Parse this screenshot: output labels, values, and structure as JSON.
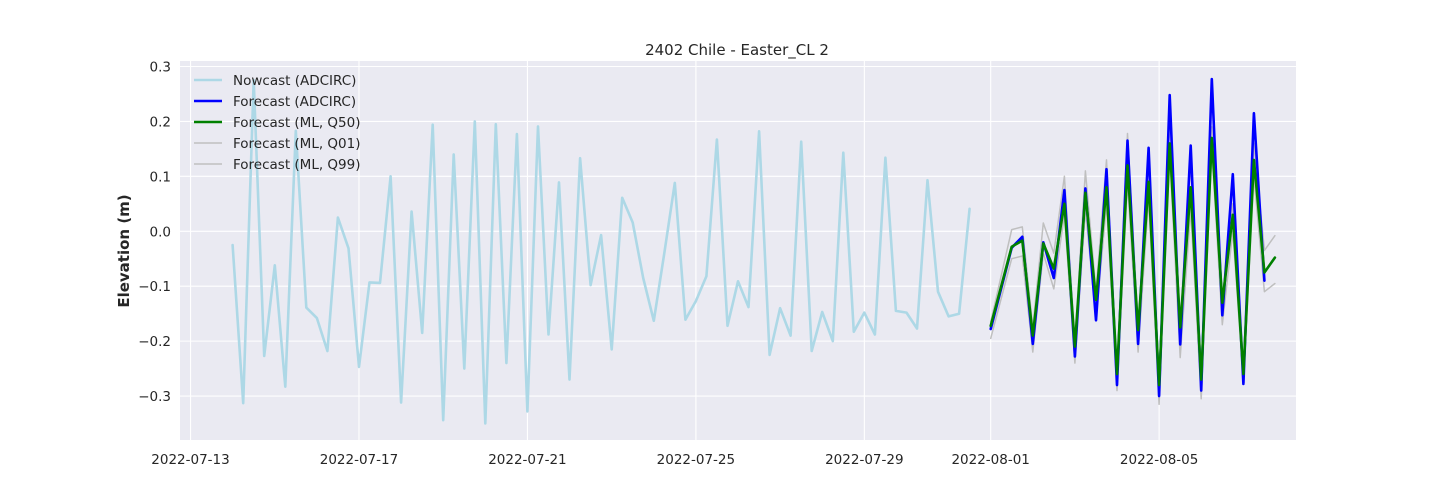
{
  "chart_data": {
    "type": "line",
    "title": "2402 Chile - Easter_CL 2",
    "xlabel": "",
    "ylabel": "Elevation (m)",
    "x_axis_type": "date",
    "xlim": [
      "2022-07-12T18:00",
      "2022-08-08T06:00"
    ],
    "ylim": [
      -0.38,
      0.31
    ],
    "x_ticks": [
      "2022-07-13",
      "2022-07-17",
      "2022-07-21",
      "2022-07-25",
      "2022-07-29",
      "2022-08-01",
      "2022-08-05"
    ],
    "y_ticks": [
      -0.3,
      -0.2,
      -0.1,
      0.0,
      0.1,
      0.2,
      0.3
    ],
    "y_tick_labels": [
      "−0.3",
      "−0.2",
      "−0.1",
      "0.0",
      "0.1",
      "0.2",
      "0.3"
    ],
    "grid": true,
    "legend_position": "top-left",
    "series": [
      {
        "name": "Nowcast (ADCIRC)",
        "color": "#add8e6",
        "width": 2.6,
        "x": [
          "2022-07-14T00:00",
          "2022-07-14T06:00",
          "2022-07-14T12:00",
          "2022-07-14T18:00",
          "2022-07-15T00:00",
          "2022-07-15T06:00",
          "2022-07-15T12:00",
          "2022-07-15T18:00",
          "2022-07-16T00:00",
          "2022-07-16T06:00",
          "2022-07-16T12:00",
          "2022-07-16T18:00",
          "2022-07-17T00:00",
          "2022-07-17T06:00",
          "2022-07-17T12:00",
          "2022-07-17T18:00",
          "2022-07-18T00:00",
          "2022-07-18T06:00",
          "2022-07-18T12:00",
          "2022-07-18T18:00",
          "2022-07-19T00:00",
          "2022-07-19T06:00",
          "2022-07-19T12:00",
          "2022-07-19T18:00",
          "2022-07-20T00:00",
          "2022-07-20T06:00",
          "2022-07-20T12:00",
          "2022-07-20T18:00",
          "2022-07-21T00:00",
          "2022-07-21T06:00",
          "2022-07-21T12:00",
          "2022-07-21T18:00",
          "2022-07-22T00:00",
          "2022-07-22T06:00",
          "2022-07-22T12:00",
          "2022-07-22T18:00",
          "2022-07-23T00:00",
          "2022-07-23T06:00",
          "2022-07-23T12:00",
          "2022-07-23T18:00",
          "2022-07-24T00:00",
          "2022-07-24T06:00",
          "2022-07-24T12:00",
          "2022-07-24T18:00",
          "2022-07-25T00:00",
          "2022-07-25T06:00",
          "2022-07-25T12:00",
          "2022-07-25T18:00",
          "2022-07-26T00:00",
          "2022-07-26T06:00",
          "2022-07-26T12:00",
          "2022-07-26T18:00",
          "2022-07-27T00:00",
          "2022-07-27T06:00",
          "2022-07-27T12:00",
          "2022-07-27T18:00",
          "2022-07-28T00:00",
          "2022-07-28T06:00",
          "2022-07-28T12:00",
          "2022-07-28T18:00",
          "2022-07-29T00:00",
          "2022-07-29T06:00",
          "2022-07-29T12:00",
          "2022-07-29T18:00",
          "2022-07-30T00:00",
          "2022-07-30T06:00",
          "2022-07-30T12:00",
          "2022-07-30T18:00",
          "2022-07-31T00:00",
          "2022-07-31T06:00",
          "2022-07-31T12:00"
        ],
        "y": [
          -0.025,
          -0.313,
          0.275,
          -0.227,
          -0.062,
          -0.283,
          0.183,
          -0.139,
          -0.158,
          -0.218,
          0.025,
          -0.031,
          -0.247,
          -0.093,
          -0.094,
          0.1,
          -0.312,
          0.036,
          -0.185,
          0.194,
          -0.344,
          0.14,
          -0.25,
          0.2,
          -0.35,
          0.195,
          -0.24,
          0.177,
          -0.328,
          0.191,
          -0.188,
          0.089,
          -0.27,
          0.133,
          -0.098,
          -0.007,
          -0.215,
          0.061,
          0.016,
          -0.085,
          -0.163,
          -0.04,
          0.088,
          -0.161,
          -0.127,
          -0.082,
          0.167,
          -0.172,
          -0.091,
          -0.138,
          0.182,
          -0.225,
          -0.14,
          -0.19,
          0.163,
          -0.218,
          -0.147,
          -0.2,
          0.143,
          -0.183,
          -0.148,
          -0.188,
          0.134,
          -0.145,
          -0.148,
          -0.177,
          0.093,
          -0.11,
          -0.155,
          -0.15,
          0.041
        ]
      },
      {
        "name": "Forecast (ADCIRC)",
        "color": "#0000ff",
        "width": 2.6,
        "x": [
          "2022-08-01T00:00",
          "2022-08-01T12:00",
          "2022-08-01T18:00",
          "2022-08-02T00:00",
          "2022-08-02T06:00",
          "2022-08-02T12:00",
          "2022-08-02T18:00",
          "2022-08-03T00:00",
          "2022-08-03T06:00",
          "2022-08-03T12:00",
          "2022-08-03T18:00",
          "2022-08-04T00:00",
          "2022-08-04T06:00",
          "2022-08-04T12:00",
          "2022-08-04T18:00",
          "2022-08-05T00:00",
          "2022-08-05T06:00",
          "2022-08-05T12:00",
          "2022-08-05T18:00",
          "2022-08-06T00:00",
          "2022-08-06T06:00",
          "2022-08-06T12:00",
          "2022-08-06T18:00",
          "2022-08-07T00:00",
          "2022-08-07T06:00",
          "2022-08-07T12:00"
        ],
        "y": [
          -0.178,
          -0.03,
          -0.01,
          -0.205,
          -0.02,
          -0.085,
          0.075,
          -0.228,
          0.078,
          -0.162,
          0.113,
          -0.28,
          0.165,
          -0.205,
          0.152,
          -0.3,
          0.248,
          -0.206,
          0.156,
          -0.29,
          0.277,
          -0.153,
          0.104,
          -0.278,
          0.215,
          -0.09
        ]
      },
      {
        "name": "Forecast (ML, Q50)",
        "color": "#008000",
        "width": 2.6,
        "x": [
          "2022-08-01T00:00",
          "2022-08-01T12:00",
          "2022-08-01T18:00",
          "2022-08-02T00:00",
          "2022-08-02T06:00",
          "2022-08-02T12:00",
          "2022-08-02T18:00",
          "2022-08-03T00:00",
          "2022-08-03T06:00",
          "2022-08-03T12:00",
          "2022-08-03T18:00",
          "2022-08-04T00:00",
          "2022-08-04T06:00",
          "2022-08-04T12:00",
          "2022-08-04T18:00",
          "2022-08-05T00:00",
          "2022-08-05T06:00",
          "2022-08-05T12:00",
          "2022-08-05T18:00",
          "2022-08-06T00:00",
          "2022-08-06T06:00",
          "2022-08-06T12:00",
          "2022-08-06T18:00",
          "2022-08-07T00:00",
          "2022-08-07T06:00",
          "2022-08-07T12:00",
          "2022-08-07T18:00"
        ],
        "y": [
          -0.172,
          -0.028,
          -0.017,
          -0.19,
          -0.022,
          -0.068,
          0.05,
          -0.21,
          0.07,
          -0.125,
          0.08,
          -0.26,
          0.12,
          -0.18,
          0.09,
          -0.28,
          0.16,
          -0.175,
          0.08,
          -0.27,
          0.17,
          -0.13,
          0.03,
          -0.26,
          0.13,
          -0.075,
          -0.048
        ]
      },
      {
        "name": "Forecast (ML, Q01)",
        "color": "#bfbfbf",
        "width": 1.5,
        "x": [
          "2022-08-01T00:00",
          "2022-08-01T12:00",
          "2022-08-01T18:00",
          "2022-08-02T00:00",
          "2022-08-02T06:00",
          "2022-08-02T12:00",
          "2022-08-02T18:00",
          "2022-08-03T00:00",
          "2022-08-03T06:00",
          "2022-08-03T12:00",
          "2022-08-03T18:00",
          "2022-08-04T00:00",
          "2022-08-04T06:00",
          "2022-08-04T12:00",
          "2022-08-04T18:00",
          "2022-08-05T00:00",
          "2022-08-05T06:00",
          "2022-08-05T12:00",
          "2022-08-05T18:00",
          "2022-08-06T00:00",
          "2022-08-06T06:00",
          "2022-08-06T12:00",
          "2022-08-06T18:00",
          "2022-08-07T00:00",
          "2022-08-07T06:00",
          "2022-08-07T12:00",
          "2022-08-07T18:00"
        ],
        "y": [
          -0.195,
          -0.05,
          -0.045,
          -0.22,
          -0.04,
          -0.105,
          0.03,
          -0.24,
          0.04,
          -0.16,
          0.05,
          -0.29,
          0.09,
          -0.22,
          0.06,
          -0.315,
          0.14,
          -0.23,
          0.04,
          -0.305,
          0.15,
          -0.17,
          0.0,
          -0.275,
          0.1,
          -0.11,
          -0.095
        ]
      },
      {
        "name": "Forecast (ML, Q99)",
        "color": "#bfbfbf",
        "width": 1.5,
        "x": [
          "2022-08-01T00:00",
          "2022-08-01T12:00",
          "2022-08-01T18:00",
          "2022-08-02T00:00",
          "2022-08-02T06:00",
          "2022-08-02T12:00",
          "2022-08-02T18:00",
          "2022-08-03T00:00",
          "2022-08-03T06:00",
          "2022-08-03T12:00",
          "2022-08-03T18:00",
          "2022-08-04T00:00",
          "2022-08-04T06:00",
          "2022-08-04T12:00",
          "2022-08-04T18:00",
          "2022-08-05T00:00",
          "2022-08-05T06:00",
          "2022-08-05T12:00",
          "2022-08-05T18:00",
          "2022-08-06T00:00",
          "2022-08-06T06:00",
          "2022-08-06T12:00",
          "2022-08-06T18:00",
          "2022-08-07T00:00",
          "2022-08-07T06:00",
          "2022-08-07T12:00",
          "2022-08-07T18:00"
        ],
        "y": [
          -0.165,
          0.003,
          0.008,
          -0.175,
          0.015,
          -0.04,
          0.1,
          -0.2,
          0.11,
          -0.11,
          0.13,
          -0.25,
          0.178,
          -0.17,
          0.13,
          -0.265,
          0.2,
          -0.16,
          0.12,
          -0.25,
          0.19,
          -0.12,
          0.05,
          -0.24,
          0.16,
          -0.035,
          -0.008
        ]
      }
    ]
  }
}
